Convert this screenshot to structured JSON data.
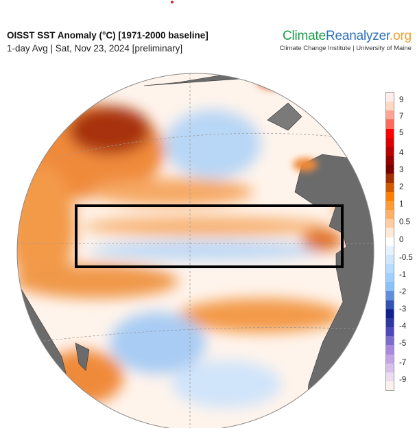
{
  "header": {
    "title": "OISST SST Anomaly (°C) [1971-2000 baseline]",
    "subtitle": "1-day Avg | Sat, Nov 23, 2024 [preliminary]"
  },
  "logo": {
    "part1": "Climate",
    "part2": "Reanalyzer",
    "part3": ".org",
    "tagline": "Climate Change Institute | University of Maine"
  },
  "colorbar": {
    "labels": [
      "9",
      "7",
      "5",
      "4",
      "3",
      "2",
      "1",
      "0.5",
      "0",
      "-0.5",
      "-1",
      "-2",
      "-3",
      "-4",
      "-5",
      "-7",
      "-9"
    ],
    "colors": [
      "#ffecec",
      "#ffd8c4",
      "#ffa494",
      "#ff6a5c",
      "#ff0000",
      "#dd0000",
      "#bb0000",
      "#990000",
      "#7a0000",
      "#a03000",
      "#d05a00",
      "#ff8000",
      "#ff9a34",
      "#ffb064",
      "#ffcca0",
      "#ffe8d6",
      "#ffffff",
      "#e6f2ff",
      "#d0e6ff",
      "#b8dcff",
      "#a0d0ff",
      "#88c2fa",
      "#5f8fdc",
      "#3452b4",
      "#10208e",
      "#2e38a0",
      "#5048bc",
      "#7c6cd0",
      "#a888e0",
      "#c4a4e6",
      "#d8c0ec",
      "#ecdcf2",
      "#fff0f0"
    ]
  },
  "map": {
    "region_label": "Niño region box",
    "land_color": "#6b6b6b",
    "warm_color": "#f08a3a",
    "cool_color": "#a8ccf4"
  }
}
